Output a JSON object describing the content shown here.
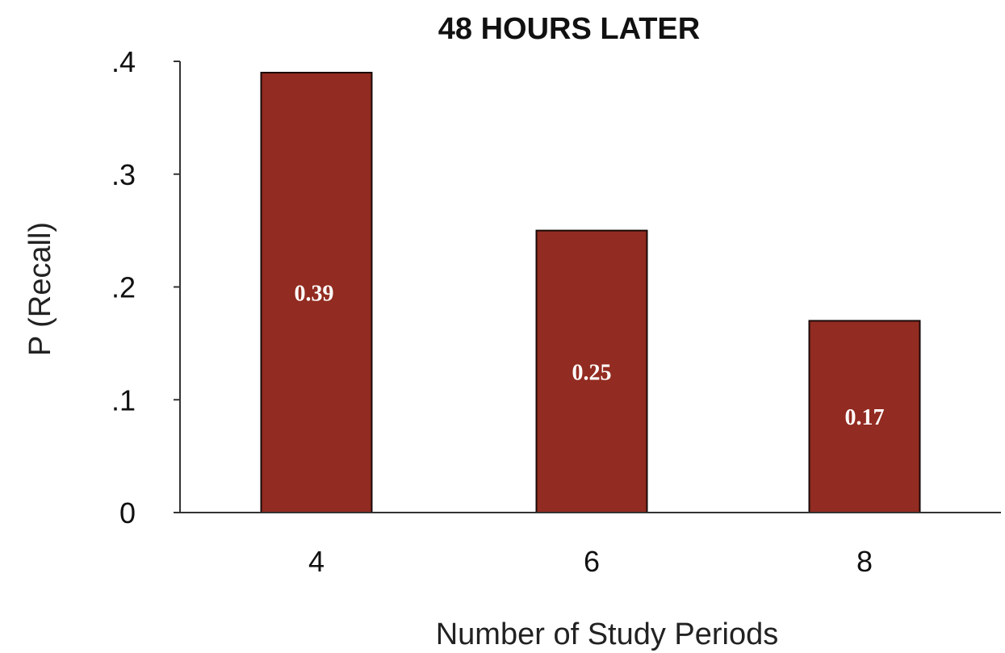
{
  "chart_data": {
    "type": "bar",
    "title": "48 HOURS LATER",
    "xlabel": "Number of Study Periods",
    "ylabel": "P (Recall)",
    "categories": [
      "4",
      "6",
      "8"
    ],
    "values": [
      0.39,
      0.25,
      0.17
    ],
    "data_labels": [
      "0.39",
      "0.25",
      "0.17"
    ],
    "ylim": [
      0,
      0.4
    ],
    "yticks": [
      {
        "value": 0,
        "label": "0"
      },
      {
        "value": 0.1,
        "label": ".1"
      },
      {
        "value": 0.2,
        "label": ".2"
      },
      {
        "value": 0.3,
        "label": ".3"
      },
      {
        "value": 0.4,
        "label": ".4"
      }
    ],
    "grid": false,
    "legend": "none",
    "colors": {
      "bar": "#922b21",
      "bar_edge": "#1a0a08",
      "axis": "#333333",
      "data_label": "#ffffff"
    }
  }
}
